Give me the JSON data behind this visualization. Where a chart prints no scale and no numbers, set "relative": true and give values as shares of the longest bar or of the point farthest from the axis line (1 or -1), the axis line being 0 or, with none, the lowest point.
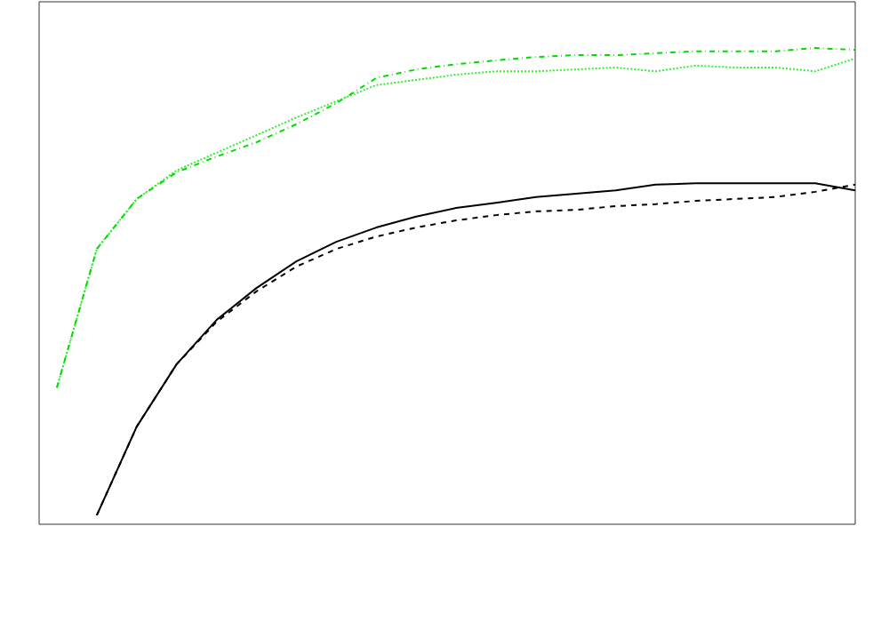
{
  "chart_data": {
    "type": "line",
    "relative": true,
    "categories": [
      null,
      null,
      null,
      null,
      null,
      null,
      null,
      null,
      null,
      null,
      null,
      null,
      null,
      null,
      null,
      null,
      null,
      null,
      null,
      null,
      null
    ],
    "series": [
      {
        "color": "#000000",
        "line_style": "solid",
        "values": [
          null,
          0.019,
          0.205,
          0.336,
          0.429,
          0.496,
          0.552,
          0.593,
          0.623,
          0.646,
          0.664,
          0.675,
          0.687,
          0.694,
          0.701,
          0.713,
          0.716,
          0.716,
          0.716,
          0.716,
          0.701
        ]
      },
      {
        "color": "#000000",
        "line_style": "dashed",
        "values": [
          null,
          0.019,
          0.205,
          0.336,
          0.425,
          0.489,
          0.541,
          0.578,
          0.604,
          0.623,
          0.638,
          0.649,
          0.657,
          0.66,
          0.668,
          0.672,
          0.679,
          0.683,
          0.687,
          0.698,
          0.713
        ]
      },
      {
        "color": "#33ee33",
        "line_style": "dotted",
        "values": [
          0.287,
          0.578,
          0.683,
          0.743,
          0.78,
          0.817,
          0.854,
          0.888,
          0.922,
          0.933,
          0.944,
          0.951,
          0.951,
          0.955,
          0.959,
          0.951,
          0.963,
          0.959,
          0.959,
          0.951,
          0.978
        ]
      },
      {
        "color": "#00dd00",
        "line_style": "dashdot",
        "values": [
          0.287,
          0.578,
          0.683,
          0.739,
          0.772,
          0.802,
          0.84,
          0.884,
          0.937,
          0.955,
          0.966,
          0.974,
          0.981,
          0.985,
          0.985,
          0.989,
          0.993,
          0.993,
          0.993,
          1.0,
          0.996
        ]
      }
    ]
  }
}
